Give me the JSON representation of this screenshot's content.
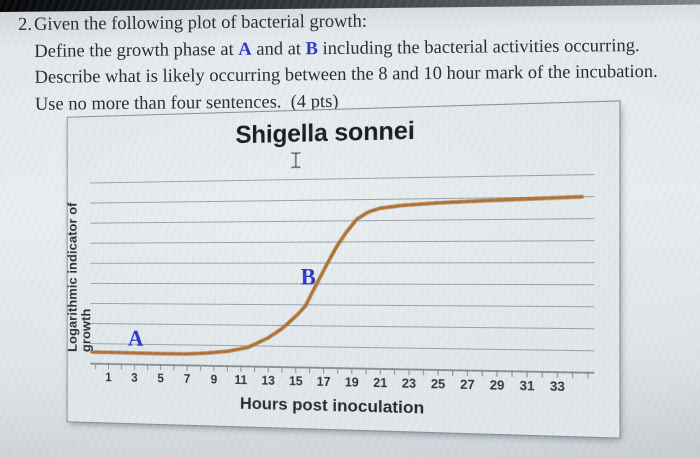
{
  "question": {
    "number": "2.",
    "line1": "Given the following plot of bacterial growth:",
    "line2": {
      "pre": "Define the growth phase at ",
      "a": "A",
      "mid": " and at ",
      "b": "B",
      "post": " including the bacterial activities occurring."
    },
    "line3": "Describe what is likely occurring between the 8 and 10 hour mark of the incubation.",
    "line4": "Use no more than four sentences.  (4 pts)"
  },
  "cursor": {
    "icon": "text-select-ibeam-cursor"
  },
  "chart_data": {
    "type": "line",
    "title": "Shigella sonnei",
    "xlabel": "Hours post inoculation",
    "ylabel": "Logarithmic indicator of growth",
    "x_tick_labels": [
      "1",
      "3",
      "5",
      "7",
      "9",
      "11",
      "13",
      "15",
      "17",
      "19",
      "21",
      "23",
      "25",
      "27",
      "29",
      "31",
      "33"
    ],
    "x_axis_hours": [
      1,
      33
    ],
    "ylim": [
      0,
      9
    ],
    "grid": "horizontal gridlines, no y tick labels",
    "legend": "none",
    "series": [
      {
        "name": "bacterial growth curve",
        "color": "#b1702f",
        "points": [
          [
            -0.3,
            0.58
          ],
          [
            2,
            0.57
          ],
          [
            5,
            0.55
          ],
          [
            7,
            0.56
          ],
          [
            8.5,
            0.62
          ],
          [
            10,
            0.72
          ],
          [
            11.5,
            0.92
          ],
          [
            13,
            1.4
          ],
          [
            14,
            1.85
          ],
          [
            15,
            2.45
          ],
          [
            15.7,
            2.95
          ],
          [
            16.5,
            4.0
          ],
          [
            17.2,
            4.9
          ],
          [
            17.9,
            5.75
          ],
          [
            18.6,
            6.45
          ],
          [
            19.4,
            7.1
          ],
          [
            20.2,
            7.42
          ],
          [
            21,
            7.58
          ],
          [
            22.5,
            7.7
          ],
          [
            25,
            7.8
          ],
          [
            28,
            7.87
          ],
          [
            31,
            7.93
          ],
          [
            34.6,
            8.0
          ]
        ]
      }
    ],
    "annotations": [
      {
        "text": "A",
        "x": 3.1,
        "y": 1.3
      },
      {
        "text": "B",
        "x": 15.9,
        "y": 4.35
      }
    ]
  },
  "colors": {
    "curve": "#b1702f",
    "curve_shadow": "#8f5a24",
    "gridline": "#98a2aa",
    "axis": "#7e8890",
    "accent_blue": "#2a35c8",
    "chart_bg": "#e2e8eb",
    "page_bg": "#dfe5e9",
    "title_text": "#17191c",
    "body_text": "#262b31"
  }
}
